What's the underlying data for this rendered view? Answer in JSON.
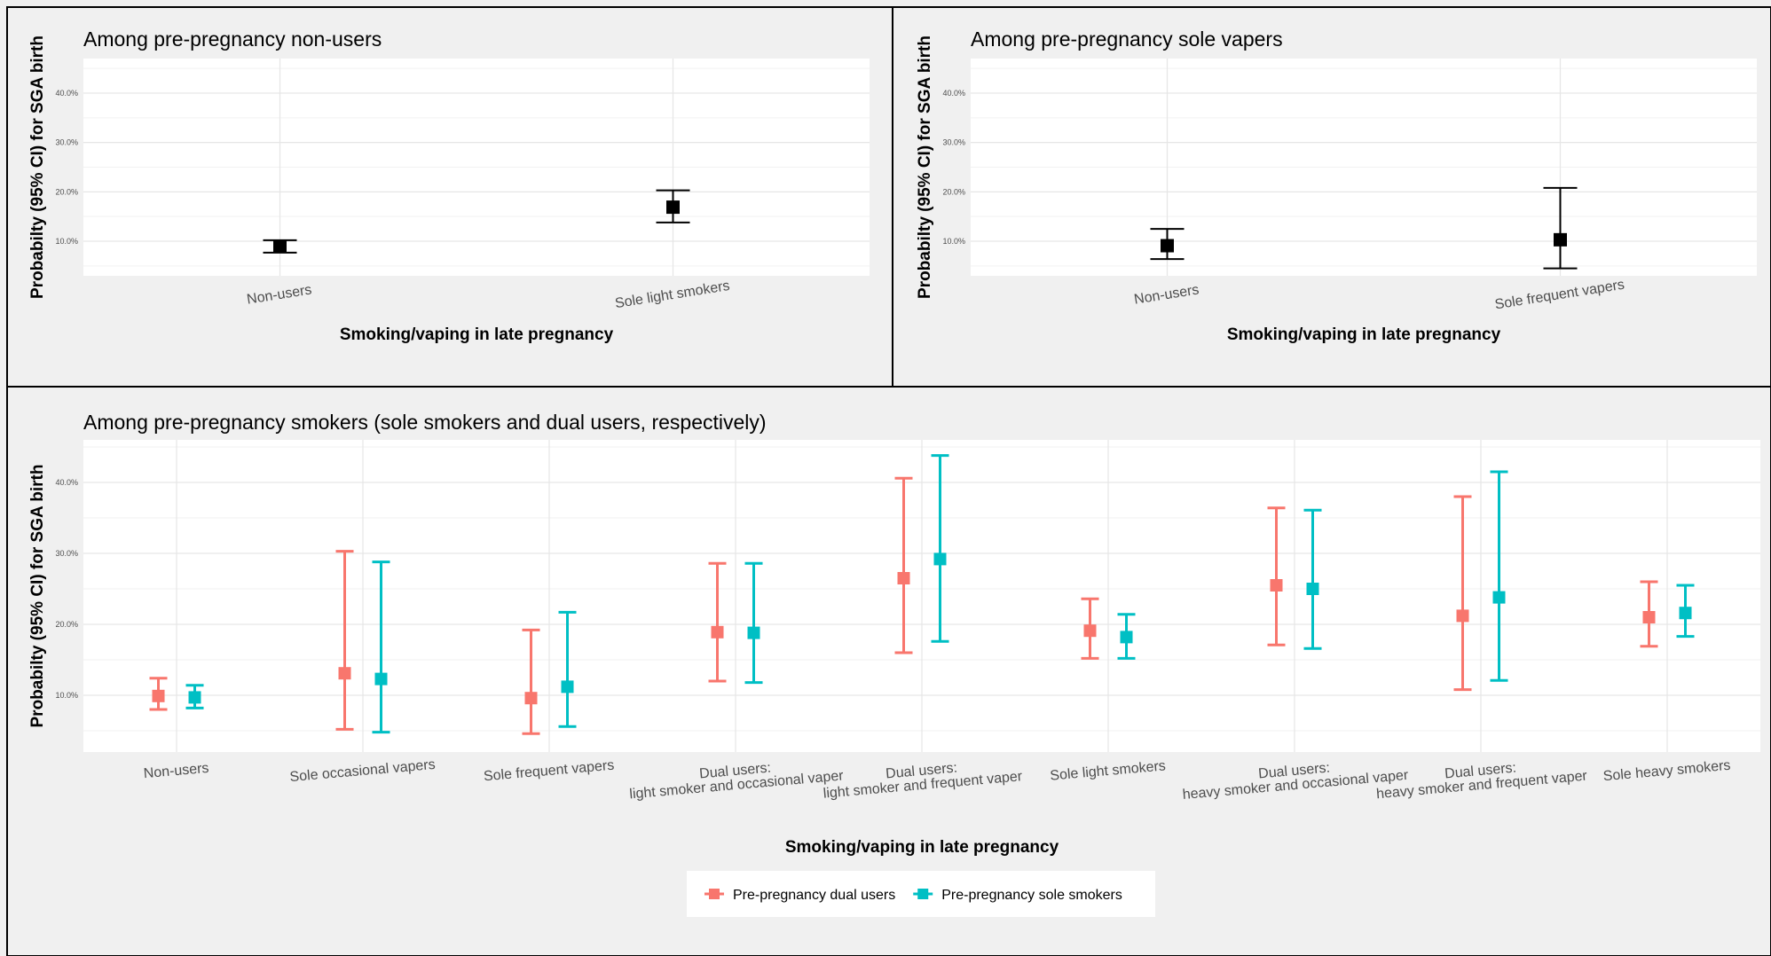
{
  "chart_data": [
    {
      "type": "scatter",
      "title": "Among pre-pregnancy non-users",
      "xlabel": "Smoking/vaping in late pregnancy",
      "ylabel": "Probabilty (95% CI) for SGA birth",
      "ylim": [
        3,
        47
      ],
      "y_ticks": [
        {
          "value": 10,
          "label": "10.0%"
        },
        {
          "value": 20,
          "label": "20.0%"
        },
        {
          "value": 30,
          "label": "30.0%"
        },
        {
          "value": 40,
          "label": "40.0%"
        }
      ],
      "categories": [
        "Non-users",
        "Sole light smokers"
      ],
      "grid": true,
      "series": [
        {
          "color": "#000000",
          "points": [
            {
              "estimate": 9.0,
              "lower": 7.7,
              "upper": 10.2
            },
            {
              "estimate": 16.9,
              "lower": 13.8,
              "upper": 20.3
            }
          ]
        }
      ]
    },
    {
      "type": "scatter",
      "title": "Among pre-pregnancy sole vapers",
      "xlabel": "Smoking/vaping in late pregnancy",
      "ylabel": "Probabilty (95% CI) for SGA birth",
      "ylim": [
        3,
        47
      ],
      "y_ticks": [
        {
          "value": 10,
          "label": "10.0%"
        },
        {
          "value": 20,
          "label": "20.0%"
        },
        {
          "value": 30,
          "label": "30.0%"
        },
        {
          "value": 40,
          "label": "40.0%"
        }
      ],
      "categories": [
        "Non-users",
        "Sole frequent vapers"
      ],
      "grid": true,
      "series": [
        {
          "color": "#000000",
          "points": [
            {
              "estimate": 9.1,
              "lower": 6.4,
              "upper": 12.5
            },
            {
              "estimate": 10.3,
              "lower": 4.5,
              "upper": 20.8
            }
          ]
        }
      ]
    },
    {
      "type": "scatter",
      "title": "Among pre-pregnancy smokers (sole smokers and dual users, respectively)",
      "xlabel": "Smoking/vaping in late pregnancy",
      "ylabel": "Probabilty (95% CI) for SGA birth",
      "ylim": [
        2,
        46
      ],
      "y_ticks": [
        {
          "value": 10,
          "label": "10.0%"
        },
        {
          "value": 20,
          "label": "20.0%"
        },
        {
          "value": 30,
          "label": "30.0%"
        },
        {
          "value": 40,
          "label": "40.0%"
        }
      ],
      "categories": [
        [
          "Non-users"
        ],
        [
          "Sole occasional vapers"
        ],
        [
          "Sole frequent vapers"
        ],
        [
          "Dual users:",
          "light smoker and occasional vaper"
        ],
        [
          "Dual users:",
          "light smoker and frequent vaper"
        ],
        [
          "Sole light smokers"
        ],
        [
          "Dual users:",
          "heavy smoker and occasional vaper"
        ],
        [
          "Dual users:",
          "heavy smoker and frequent vaper"
        ],
        [
          "Sole heavy smokers"
        ]
      ],
      "grid": true,
      "legend_position": "bottom",
      "series": [
        {
          "name": "Pre-pregnancy dual users",
          "color": "#F8766D",
          "points": [
            {
              "estimate": 9.9,
              "lower": 8.0,
              "upper": 12.4
            },
            {
              "estimate": 13.1,
              "lower": 5.2,
              "upper": 30.3
            },
            {
              "estimate": 9.6,
              "lower": 4.6,
              "upper": 19.2
            },
            {
              "estimate": 18.9,
              "lower": 12.0,
              "upper": 28.6
            },
            {
              "estimate": 26.5,
              "lower": 16.0,
              "upper": 40.6
            },
            {
              "estimate": 19.1,
              "lower": 15.2,
              "upper": 23.6
            },
            {
              "estimate": 25.5,
              "lower": 17.1,
              "upper": 36.4
            },
            {
              "estimate": 21.2,
              "lower": 10.8,
              "upper": 38.0
            },
            {
              "estimate": 21.0,
              "lower": 16.9,
              "upper": 26.0
            }
          ]
        },
        {
          "name": "Pre-pregnancy sole smokers",
          "color": "#00BFC4",
          "points": [
            {
              "estimate": 9.7,
              "lower": 8.2,
              "upper": 11.4
            },
            {
              "estimate": 12.3,
              "lower": 4.8,
              "upper": 28.8
            },
            {
              "estimate": 11.2,
              "lower": 5.6,
              "upper": 21.7
            },
            {
              "estimate": 18.8,
              "lower": 11.8,
              "upper": 28.6
            },
            {
              "estimate": 29.2,
              "lower": 17.6,
              "upper": 43.8
            },
            {
              "estimate": 18.2,
              "lower": 15.2,
              "upper": 21.4
            },
            {
              "estimate": 25.0,
              "lower": 16.6,
              "upper": 36.1
            },
            {
              "estimate": 23.8,
              "lower": 12.1,
              "upper": 41.5
            },
            {
              "estimate": 21.6,
              "lower": 18.3,
              "upper": 25.5
            }
          ]
        }
      ]
    }
  ]
}
